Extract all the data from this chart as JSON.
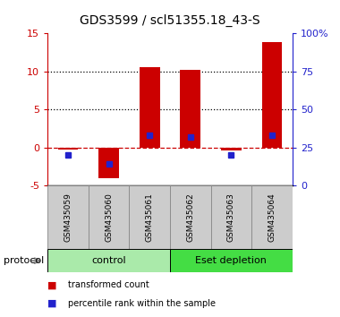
{
  "title": "GDS3599 / scl51355.18_43-S",
  "samples": [
    "GSM435059",
    "GSM435060",
    "GSM435061",
    "GSM435062",
    "GSM435063",
    "GSM435064"
  ],
  "transformed_counts": [
    -0.3,
    -4.0,
    10.5,
    10.2,
    -0.4,
    13.8
  ],
  "percentile_ranks": [
    20,
    14,
    33,
    32,
    20,
    33
  ],
  "ylim_left": [
    -5,
    15
  ],
  "ylim_right": [
    0,
    100
  ],
  "yticks_left": [
    -5,
    0,
    5,
    10,
    15
  ],
  "ytick_labels_left": [
    "-5",
    "0",
    "5",
    "10",
    "15"
  ],
  "yticks_right": [
    0,
    25,
    50,
    75,
    100
  ],
  "ytick_labels_right": [
    "0",
    "25",
    "50",
    "75",
    "100%"
  ],
  "bar_color": "#cc0000",
  "marker_color": "#2222cc",
  "dashed_line_color": "#cc0000",
  "dotted_line_color": "#000000",
  "protocol_groups": [
    {
      "label": "control",
      "color": "#aaeaaa",
      "start": 0,
      "end": 3
    },
    {
      "label": "Eset depletion",
      "color": "#44dd44",
      "start": 3,
      "end": 6
    }
  ],
  "legend_items": [
    {
      "label": "transformed count",
      "color": "#cc0000"
    },
    {
      "label": "percentile rank within the sample",
      "color": "#2222cc"
    }
  ],
  "protocol_label": "protocol",
  "tick_label_color_left": "#cc0000",
  "tick_label_color_right": "#2222cc",
  "bar_width": 0.5,
  "sample_label_bg": "#cccccc",
  "control_color": "#aaeaaa",
  "esetdepletion_color": "#44dd44"
}
